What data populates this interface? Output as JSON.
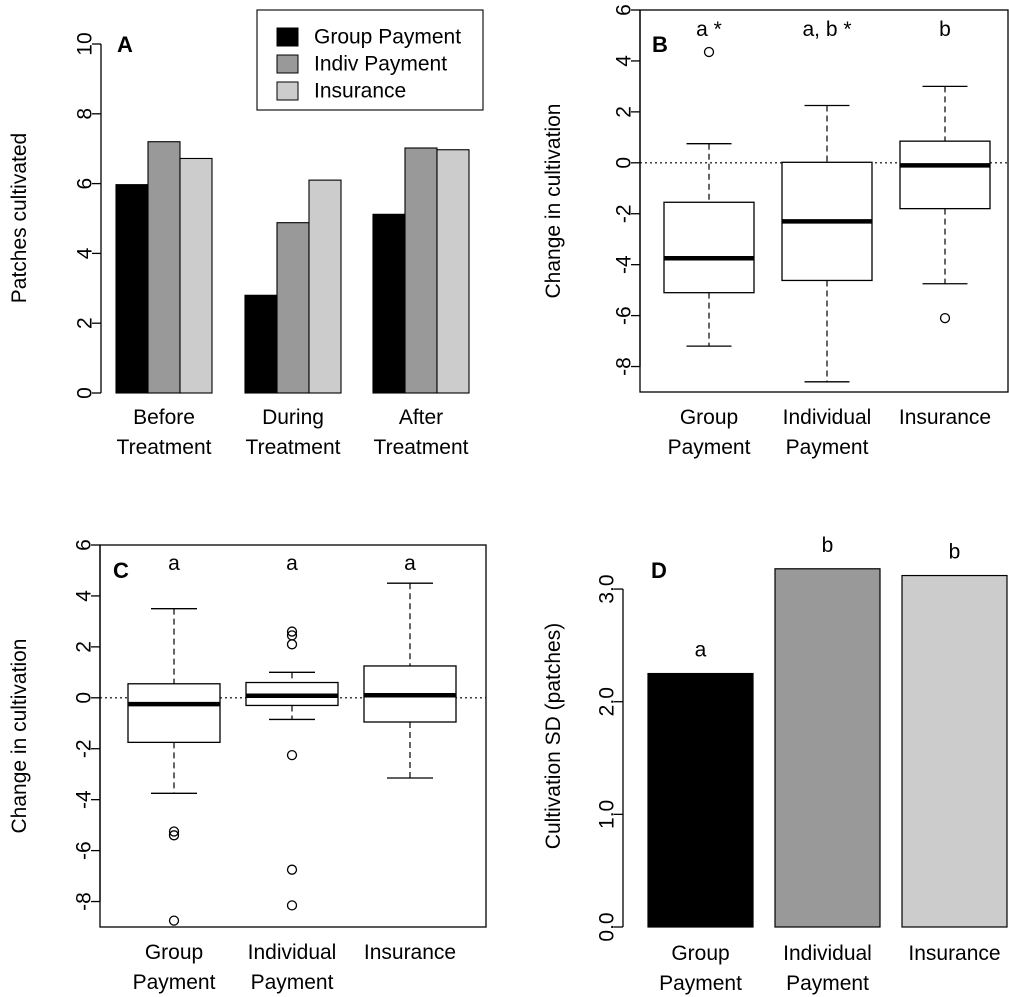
{
  "chart_data": [
    {
      "panel": "A",
      "type": "bar",
      "ylabel": "Patches cultivated",
      "ylim": [
        0,
        10
      ],
      "yticks": [
        "0",
        "2",
        "4",
        "6",
        "8",
        "10"
      ],
      "categories": [
        {
          "line1": "Before",
          "line2": "Treatment"
        },
        {
          "line1": "During",
          "line2": "Treatment"
        },
        {
          "line1": "After",
          "line2": "Treatment"
        }
      ],
      "series": [
        {
          "name": "Group Payment",
          "color": "#000000",
          "values": [
            5.97,
            2.8,
            5.12
          ]
        },
        {
          "name": "Indiv Payment",
          "color": "#999999",
          "values": [
            7.2,
            4.88,
            7.02
          ]
        },
        {
          "name": "Insurance",
          "color": "#cccccc",
          "values": [
            6.72,
            6.1,
            6.97
          ]
        }
      ],
      "legend": "top-right",
      "grid": false
    },
    {
      "panel": "B",
      "type": "boxplot",
      "ylabel": "Change in cultivation",
      "ylim": [
        -9,
        6
      ],
      "yticks": [
        "-8",
        "-6",
        "-4",
        "-2",
        "0",
        "2",
        "4",
        "6"
      ],
      "reference_line": 0,
      "groups": [
        {
          "line1": "Group",
          "line2": "Payment",
          "letter": "a *",
          "whisker_low": -7.2,
          "q1": -5.1,
          "median": -3.75,
          "q3": -1.55,
          "whisker_high": 0.75,
          "outliers": [
            4.35
          ]
        },
        {
          "line1": "Individual",
          "line2": "Payment",
          "letter": "a, b *",
          "whisker_low": -8.6,
          "q1": -4.62,
          "median": -2.3,
          "q3": 0.02,
          "whisker_high": 2.25,
          "outliers": []
        },
        {
          "line1": "Insurance",
          "line2": "",
          "letter": "b",
          "whisker_low": -4.75,
          "q1": -1.8,
          "median": -0.1,
          "q3": 0.85,
          "whisker_high": 3.0,
          "outliers": [
            -6.1
          ]
        }
      ]
    },
    {
      "panel": "C",
      "type": "boxplot",
      "ylabel": "Change in cultivation",
      "ylim": [
        -9,
        6
      ],
      "yticks": [
        "-8",
        "-6",
        "-4",
        "-2",
        "0",
        "2",
        "4",
        "6"
      ],
      "reference_line": 0,
      "groups": [
        {
          "line1": "Group",
          "line2": "Payment",
          "letter": "a",
          "whisker_low": -3.75,
          "q1": -1.75,
          "median": -0.25,
          "q3": 0.55,
          "whisker_high": 3.5,
          "outliers": [
            -5.25,
            -5.4,
            -8.75
          ]
        },
        {
          "line1": "Individual",
          "line2": "Payment",
          "letter": "a",
          "whisker_low": -0.85,
          "q1": -0.3,
          "median": 0.08,
          "q3": 0.6,
          "whisker_high": 1.0,
          "outliers": [
            2.6,
            2.45,
            2.1,
            -2.25,
            -6.75,
            -8.15
          ]
        },
        {
          "line1": "Insurance",
          "line2": "",
          "letter": "a",
          "whisker_low": -3.15,
          "q1": -0.95,
          "median": 0.1,
          "q3": 1.25,
          "whisker_high": 4.5,
          "outliers": []
        }
      ]
    },
    {
      "panel": "D",
      "type": "bar",
      "ylabel": "Cultivation SD (patches)",
      "ylim": [
        0,
        3.4
      ],
      "yticks": [
        "0.0",
        "1.0",
        "2.0",
        "3.0"
      ],
      "categories": [
        {
          "line1": "Group",
          "line2": "Payment",
          "letter": "a",
          "color": "#000000",
          "value": 2.25
        },
        {
          "line1": "Individual",
          "line2": "Payment",
          "letter": "b",
          "color": "#999999",
          "value": 3.18
        },
        {
          "line1": "Insurance",
          "line2": "",
          "letter": "b",
          "color": "#cccccc",
          "value": 3.12
        }
      ]
    }
  ]
}
